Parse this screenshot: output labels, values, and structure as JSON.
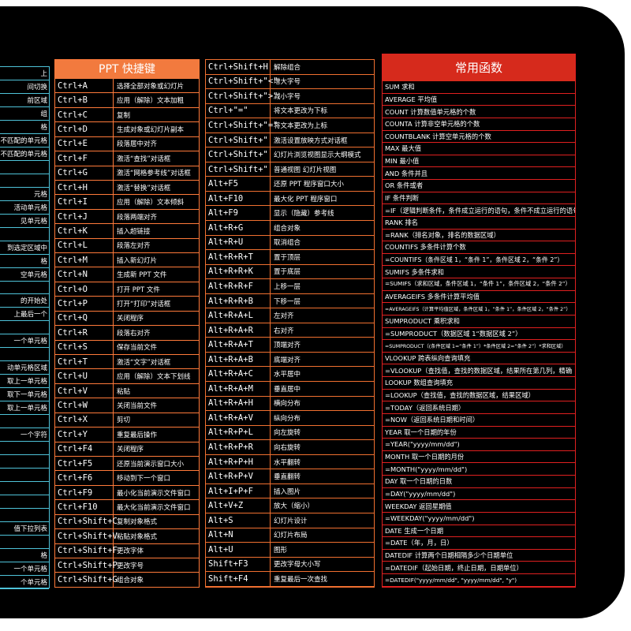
{
  "colors": {
    "excel": "#4fc3d9",
    "ppt": "#ff7a3a",
    "ppt2": "#f07030",
    "func": "#e02020",
    "func_header_bg": "#d62a1c",
    "ppt_header_bg": "#f27a3e"
  },
  "excel_partial": [
    "上",
    "间切换",
    "前区域",
    "组",
    "格",
    "不匹配的单元格",
    "不匹配的单元格",
    "",
    "",
    "元格",
    "活动单元格",
    "见单元格",
    "",
    "到选定区域中",
    "格",
    "空单元格",
    "",
    "的开始处",
    "上最后一个",
    "",
    "一个单元格",
    "",
    "动单元格区域",
    "取上一单元格",
    "取下一单元格",
    "取上一单元格",
    "",
    "一个字符",
    "",
    "",
    "",
    "",
    "",
    "",
    "值下拉列表",
    "",
    "格",
    "一个单元格",
    "个单元格"
  ],
  "ppt": {
    "title": "PPT 快捷键",
    "rows": [
      {
        "key": "Ctrl+A",
        "desc": "选择全部对象或幻灯片"
      },
      {
        "key": "Ctrl+B",
        "desc": "应用（解除）文本加粗"
      },
      {
        "key": "Ctrl+C",
        "desc": "复制"
      },
      {
        "key": "Ctrl+D",
        "desc": "生成对象或幻灯片副本"
      },
      {
        "key": "Ctrl+E",
        "desc": "段落居中对齐"
      },
      {
        "key": "Ctrl+F",
        "desc": "激活“查找”对话框"
      },
      {
        "key": "Ctrl+G",
        "desc": "激活“网格参考线”对话框"
      },
      {
        "key": "Ctrl+H",
        "desc": "激活“替换”对话框"
      },
      {
        "key": "Ctrl+I",
        "desc": "应用（解除）文本倾斜"
      },
      {
        "key": "Ctrl+J",
        "desc": "段落两端对齐"
      },
      {
        "key": "Ctrl+K",
        "desc": "插入超链接"
      },
      {
        "key": "Ctrl+L",
        "desc": "段落左对齐"
      },
      {
        "key": "Ctrl+M",
        "desc": "插入新幻灯片"
      },
      {
        "key": "Ctrl+N",
        "desc": "生成新 PPT 文件"
      },
      {
        "key": "Ctrl+O",
        "desc": "打开 PPT 文件"
      },
      {
        "key": "Ctrl+P",
        "desc": "打开“打印”对话框"
      },
      {
        "key": "Ctrl+Q",
        "desc": "关闭程序"
      },
      {
        "key": "Ctrl+R",
        "desc": "段落右对齐"
      },
      {
        "key": "Ctrl+S",
        "desc": "保存当前文件"
      },
      {
        "key": "Ctrl+T",
        "desc": "激活“文字”对话框"
      },
      {
        "key": "Ctrl+U",
        "desc": "应用（解除）文本下划线"
      },
      {
        "key": "Ctrl+V",
        "desc": "粘贴"
      },
      {
        "key": "Ctrl+W",
        "desc": "关闭当前文件"
      },
      {
        "key": "Ctrl+X",
        "desc": "剪切"
      },
      {
        "key": "Ctrl+Y",
        "desc": "重复最后操作"
      },
      {
        "key": "Ctrl+F4",
        "desc": "关闭程序"
      },
      {
        "key": "Ctrl+F5",
        "desc": "还原当前演示窗口大小"
      },
      {
        "key": "Ctrl+F6",
        "desc": "移动到下一个窗口"
      },
      {
        "key": "Ctrl+F9",
        "desc": "最小化当前演示文件窗口"
      },
      {
        "key": "Ctrl+F10",
        "desc": "最大化当前演示文件窗口"
      },
      {
        "key": "Ctrl+Shift+C",
        "desc": "复制对象格式"
      },
      {
        "key": "Ctrl+Shift+V",
        "desc": "粘贴对象格式"
      },
      {
        "key": "Ctrl+Shift+F",
        "desc": "更改字体"
      },
      {
        "key": "Ctrl+Shift+P",
        "desc": "更改字号"
      },
      {
        "key": "Ctrl+Shift+G",
        "desc": "组合对象"
      }
    ]
  },
  "ppt2": {
    "rows": [
      {
        "key": "Ctrl+Shift+H",
        "desc": "解除组合"
      },
      {
        "key": "Ctrl+Shift+\"<\"",
        "desc": "增大字号"
      },
      {
        "key": "Ctrl+Shift+\">\"",
        "desc": "减小字号"
      },
      {
        "key": "Ctrl+\"=\"",
        "desc": "将文本更改为下标"
      },
      {
        "key": "Ctrl+Shift+\"=\"",
        "desc": "将文本更改为上标"
      },
      {
        "key": "Ctrl+Shift+\"",
        "desc": "激活设置放映方式对话框"
      },
      {
        "key": "Ctrl+Shift+\"",
        "desc": "幻灯片浏览视图显示大纲模式"
      },
      {
        "key": "Ctrl+Shift+\"",
        "desc": "普通视图 幻灯片视图"
      },
      {
        "key": "Alt+F5",
        "desc": "还原 PPT 程序窗口大小"
      },
      {
        "key": "Alt+F10",
        "desc": "最大化 PPT 程序窗口"
      },
      {
        "key": "Alt+F9",
        "desc": "显示（隐藏）参考线"
      },
      {
        "key": "Alt+R+G",
        "desc": "组合对象"
      },
      {
        "key": "Alt+R+U",
        "desc": "取消组合"
      },
      {
        "key": "Alt+R+R+T",
        "desc": "置于顶层"
      },
      {
        "key": "Alt+R+R+K",
        "desc": "置于底层"
      },
      {
        "key": "Alt+R+R+F",
        "desc": "上移一层"
      },
      {
        "key": "Alt+R+R+B",
        "desc": "下移一层"
      },
      {
        "key": "Alt+R+A+L",
        "desc": "左对齐"
      },
      {
        "key": "Alt+R+A+R",
        "desc": "右对齐"
      },
      {
        "key": "Alt+R+A+T",
        "desc": "顶端对齐"
      },
      {
        "key": "Alt+R+A+B",
        "desc": "底端对齐"
      },
      {
        "key": "Alt+R+A+C",
        "desc": "水平居中"
      },
      {
        "key": "Alt+R+A+M",
        "desc": "垂直居中"
      },
      {
        "key": "Alt+R+A+H",
        "desc": "横向分布"
      },
      {
        "key": "Alt+R+A+V",
        "desc": "纵向分布"
      },
      {
        "key": "Alt+R+P+L",
        "desc": "向左旋转"
      },
      {
        "key": "Alt+R+P+R",
        "desc": "向右旋转"
      },
      {
        "key": "Alt+R+P+H",
        "desc": "水平翻转"
      },
      {
        "key": "Alt+R+P+V",
        "desc": "垂直翻转"
      },
      {
        "key": "Alt+I+P+F",
        "desc": "插入图片"
      },
      {
        "key": "Alt+V+Z",
        "desc": "放大（缩小）"
      },
      {
        "key": "Alt+S",
        "desc": "幻灯片设计"
      },
      {
        "key": "Alt+N",
        "desc": "幻灯片布局"
      },
      {
        "key": "Alt+U",
        "desc": "图形"
      },
      {
        "key": "Shift+F3",
        "desc": "更改字母大小写"
      },
      {
        "key": "Shift+F4",
        "desc": "重复最后一次查找"
      }
    ]
  },
  "functions": {
    "title": "常用函数",
    "rows": [
      "SUM  求和",
      "AVERAGE 平均值",
      "COUNT 计算数值单元格的个数",
      "COUNTA 计算非空单元格的个数",
      "COUNTBLANK 计算空单元格的个数",
      "MAX 最大值",
      "MIN 最小值",
      "AND 条件并且",
      "OR 条件或者",
      "IF 条件判断",
      "=IF（逻辑判断条件，条件成立运行的语句，条件不成立运行的语句）",
      "RANK 排名",
      "=RANK（排名对象，排名的数据区域）",
      "COUNTIFS 多条件计算个数",
      "=COUNTIFS（条件区域 1，“条件 1”，条件区域 2，“条件 2”）",
      "SUMIFS 多条件求和",
      "=SUMIFS（求和区域，条件区域 1，“条件 1”，条件区域 2，“条件 2”）",
      "AVERAGEIFS 多条件计算平均值",
      "=AVERAGEIFS（计算平均值区域，条件区域 1，“条件 1”，条件区域 2，“条件 2”）",
      "SUMPRODUCT 乘积求和",
      "=SUMPRODUCT（数据区域 1“数据区域 2”）",
      "=SUMPRODUCT（(条件区域 1=“条件 1”）*条件区域 2=“条件 2”）*求和区域）",
      "VLOOKUP 跨表纵向查询填充",
      "=VLOOKUP（查找值，查找的数据区域，结果所在第几列，精确",
      "LOOKUP 数组查询填充",
      "=LOOKUP（查找值，查找的数据区域，结果区域）",
      "=TODAY（返回系统日期）",
      "=NOW（返回系统日期和时间）",
      "YEAR 取一个日期的年份",
      "=YEAR(\"yyyy/mm/dd\")",
      "MONTH 取一个日期的月份",
      "=MONTH(\"yyyy/mm/dd\")",
      "DAY 取一个日期的日数",
      "=DAY(\"yyyy/mm/dd\")",
      "WEEKDAY 返回星期值",
      "=WEEKDAY(\"yyyy/mm/dd\")",
      "DATE 生成一个日期",
      "=DATE（年，月，日）",
      "DATEDIF 计算两个日期相隔多少个日期单位",
      "=DATEDIF（起始日期，终止日期，日期单位）",
      "=DATEDIF(\"yyyy/mm/dd\", \"yyyy/mm/dd\", \"y\")"
    ]
  }
}
